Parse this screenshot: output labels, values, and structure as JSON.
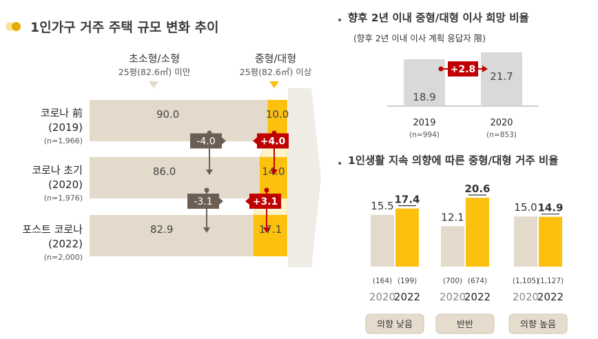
{
  "main_title": "1인가구 거주 주택 규모 변화 추이",
  "legend": {
    "small": {
      "name": "초소형/소형",
      "range": "25평(82.6㎡) 미만"
    },
    "large": {
      "name": "중형/대형",
      "range": "25평(82.6㎡) 이상"
    }
  },
  "right_top": {
    "title": "향후 2년 이내 중형/대형 이사 희망 비율",
    "subtitle": "(향후 2년 이내 이사 계획 응답자 限)"
  },
  "right_bottom": {
    "title": "1인생활 지속 의향에 따른 중형/대형 거주 비율"
  },
  "colors": {
    "small_bar": "#e3dacb",
    "large_bar": "#fcc10f",
    "change_red": "#c00000",
    "change_gray": "#6b5f55",
    "grey_bar": "#d9d9d9",
    "arrow_bg": "#efebe5",
    "bullet_dark": "#e7ab00",
    "bullet_light": "#fde29a"
  },
  "chart_data": [
    {
      "type": "bar",
      "orientation": "horizontal-stacked",
      "categories": [
        {
          "label": "코로나 前",
          "year": "(2019)",
          "n": "(n=1,966)"
        },
        {
          "label": "코로나 초기",
          "year": "(2020)",
          "n": "(n=1,976)"
        },
        {
          "label": "포스트 코로나",
          "year": "(2022)",
          "n": "(n=2,000)"
        }
      ],
      "series": [
        {
          "name": "초소형/소형",
          "values": [
            90.0,
            86.0,
            82.9
          ],
          "labels": [
            "90.0",
            "86.0",
            "82.9"
          ]
        },
        {
          "name": "중형/대형",
          "values": [
            10.0,
            14.0,
            17.1
          ],
          "labels": [
            "10.0",
            "14.0",
            "17.1"
          ]
        }
      ],
      "changes": {
        "small": [
          "-4.0",
          "-3.1"
        ],
        "large": [
          "+4.0",
          "+3.1"
        ]
      }
    },
    {
      "type": "bar",
      "categories": [
        "2019",
        "2020"
      ],
      "n": [
        "(n=994)",
        "(n=853)"
      ],
      "values": [
        18.9,
        21.7
      ],
      "labels": [
        "18.9",
        "21.7"
      ],
      "change": "+2.8"
    },
    {
      "type": "bar",
      "groups": [
        {
          "name": "의향 낮음",
          "x": [
            "2020",
            "2022"
          ],
          "values": [
            15.5,
            17.4
          ],
          "labels": [
            "15.5",
            "17.4"
          ],
          "n": [
            "(164)",
            "(199)"
          ]
        },
        {
          "name": "반반",
          "x": [
            "2020",
            "2022"
          ],
          "values": [
            12.1,
            20.6
          ],
          "labels": [
            "12.1",
            "20.6"
          ],
          "n": [
            "(700)",
            "(674)"
          ]
        },
        {
          "name": "의향 높음",
          "x": [
            "2020",
            "2022"
          ],
          "values": [
            15.0,
            14.9
          ],
          "labels": [
            "15.0",
            "14.9"
          ],
          "n": [
            "(1,105)",
            "(1,127)"
          ]
        }
      ]
    }
  ]
}
